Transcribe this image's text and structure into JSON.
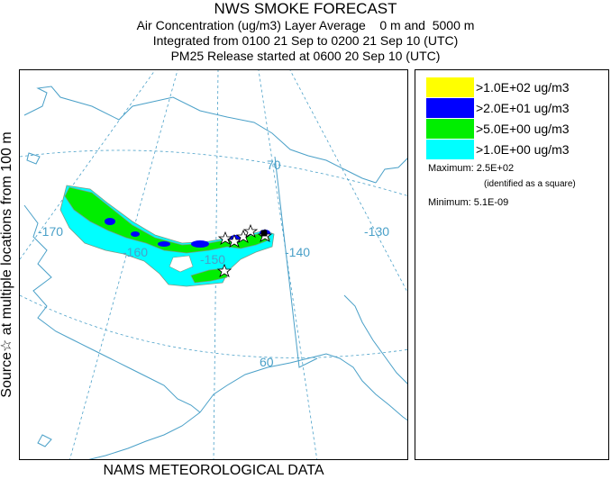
{
  "header": {
    "title": "NWS SMOKE FORECAST",
    "line2": "Air Concentration (ug/m3) Layer Average    0 m and  5000 m",
    "line3": "Integrated from 0100 21 Sep to 0200 21 Sep 10 (UTC)",
    "line4": "PM25 Release started at 0600 20 Sep 10 (UTC)"
  },
  "side_label": "Source☆  at multiple locations   from  100 m",
  "footer": "NAMS METEOROLOGICAL DATA",
  "legend": {
    "items": [
      {
        "label": ">1.0E+02 ug/m3",
        "color": "#ffff00"
      },
      {
        "label": ">2.0E+01 ug/m3",
        "color": "#0000ff"
      },
      {
        "label": ">5.0E+00 ug/m3",
        "color": "#00ee00"
      },
      {
        "label": ">1.0E+00 ug/m3",
        "color": "#00ffff"
      }
    ],
    "maximum": "Maximum: 2.5E+02",
    "maximum_note": "(identified as a square)",
    "minimum": "Minimum: 5.1E-09"
  },
  "map": {
    "graticule_labels": {
      "lat70": "70",
      "lat60": "60",
      "lon170": "-170",
      "lon160": "-160",
      "lon150": "-150",
      "lon140": "-140",
      "lon130": "-130"
    },
    "colors": {
      "coast": "#4aa0c8",
      "grid": "#4aa0c8",
      "outline": "#7a9a86"
    }
  }
}
